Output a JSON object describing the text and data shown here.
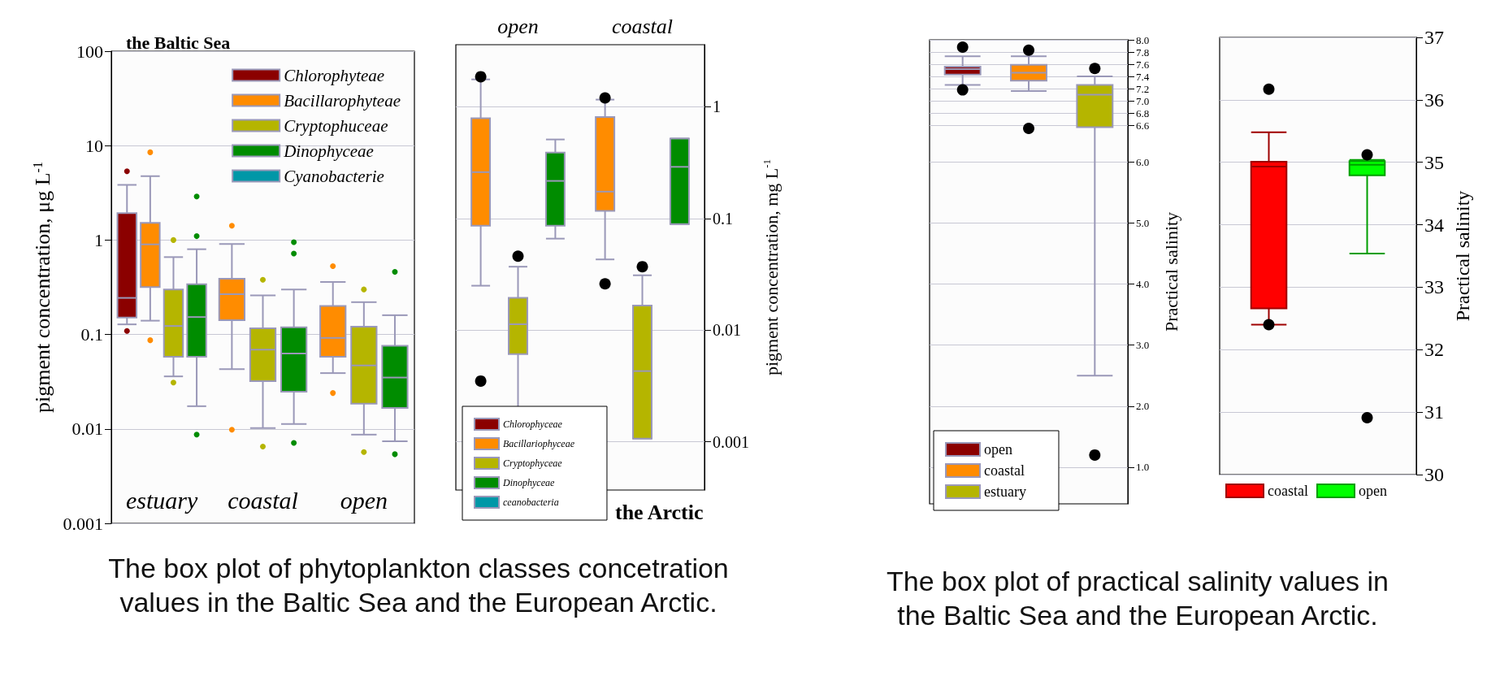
{
  "chart_data": [
    {
      "type": "box",
      "title": "the Baltic Sea",
      "ylabel": "pigment concentration, μg L$^{-1}$",
      "categories": [
        "estuary",
        "coastal",
        "open"
      ],
      "log": true,
      "ylim": [
        0.001,
        100
      ],
      "yticks": [
        0.001,
        0.01,
        0.1,
        1,
        10,
        100
      ],
      "grid": "y",
      "legend": "top right",
      "annotations": [
        "The box plot of phytoplankton classes concetration values in the Baltic Sea and the European Arctic."
      ],
      "series": [
        {
          "name": "Chlorophyteae",
          "color": "#8b0000",
          "boxes": [
            {
              "low": 0.128,
              "q1": 0.151,
              "median": 0.244,
              "q3": 1.93,
              "high": 3.84,
              "outliers": [
                5.35,
                0.109
              ]
            },
            null,
            null
          ]
        },
        {
          "name": "Bacillarophyteae",
          "color": "#ff8c00",
          "boxes": [
            {
              "low": 0.14,
              "q1": 0.318,
              "median": 0.9,
              "q3": 1.52,
              "high": 4.75,
              "outliers": [
                8.5,
                0.087
              ]
            },
            {
              "low": 0.043,
              "q1": 0.142,
              "median": 0.267,
              "q3": 0.39,
              "high": 0.91,
              "outliers": [
                1.42,
                0.0098
              ]
            },
            {
              "low": 0.039,
              "q1": 0.058,
              "median": 0.092,
              "q3": 0.2,
              "high": 0.36,
              "outliers": [
                0.53,
                0.024
              ]
            }
          ]
        },
        {
          "name": "Cryptophuceae",
          "color": "#b5b500",
          "boxes": [
            {
              "low": 0.036,
              "q1": 0.058,
              "median": 0.123,
              "q3": 0.3,
              "high": 0.66,
              "outliers": [
                1.0,
                0.031
              ]
            },
            {
              "low": 0.0102,
              "q1": 0.032,
              "median": 0.069,
              "q3": 0.116,
              "high": 0.26,
              "outliers": [
                0.38,
                0.0065
              ]
            },
            {
              "low": 0.0087,
              "q1": 0.0185,
              "median": 0.047,
              "q3": 0.121,
              "high": 0.22,
              "outliers": [
                0.3,
                0.0057
              ]
            }
          ]
        },
        {
          "name": "Dinophyceae",
          "color": "#008c00",
          "boxes": [
            {
              "low": 0.0174,
              "q1": 0.058,
              "median": 0.153,
              "q3": 0.34,
              "high": 0.8,
              "outliers": [
                2.9,
                1.1,
                0.0087
              ]
            },
            {
              "low": 0.0113,
              "q1": 0.0248,
              "median": 0.063,
              "q3": 0.119,
              "high": 0.3,
              "outliers": [
                0.95,
                0.72,
                0.0071
              ]
            },
            {
              "low": 0.0074,
              "q1": 0.0167,
              "median": 0.035,
              "q3": 0.076,
              "high": 0.16,
              "outliers": [
                0.46,
                0.0054
              ]
            }
          ]
        },
        {
          "name": "Cyanobacterie",
          "color": "#0097a7",
          "boxes": [
            null,
            null,
            null
          ]
        }
      ]
    },
    {
      "type": "box",
      "title": "the Arctic",
      "y2label": "pigment concentration, mg L$^{-1}$",
      "categories": [
        "open",
        "coastal"
      ],
      "log": "y2",
      "y2lim": [
        0.00037,
        3.6
      ],
      "y2ticks": [
        0.001,
        0.01,
        0.1,
        1
      ],
      "grid": "y",
      "legend": "bottom left",
      "series": [
        {
          "name": "Chlorophyceae",
          "color": "#8b0000",
          "axis": "y2",
          "boxes": [
            null,
            null
          ]
        },
        {
          "name": "Bacillariophyceae",
          "color": "#ff8c00",
          "axis": "y2",
          "boxes": [
            {
              "low": 0.025,
              "q1": 0.086,
              "median": 0.26,
              "q3": 0.79,
              "high": 1.76,
              "outliers": [
                1.86,
                0.0035
              ]
            },
            {
              "low": 0.043,
              "q1": 0.117,
              "median": 0.174,
              "q3": 0.81,
              "high": 1.16,
              "outliers": [
                1.2,
                0.026
              ]
            }
          ]
        },
        {
          "name": "Cryptophyceae",
          "color": "#b5b500",
          "axis": "y2",
          "boxes": [
            {
              "low": 0.00195,
              "q1": 0.0061,
              "median": 0.0113,
              "q3": 0.0195,
              "high": 0.037,
              "outliers": [
                0.046
              ]
            },
            {
              "low": 0.00107,
              "q1": 0.00107,
              "median": 0.0043,
              "q3": 0.0166,
              "high": 0.031,
              "outliers": [
                0.037
              ]
            }
          ]
        },
        {
          "name": "Dinophyceae",
          "color": "#008c00",
          "axis": "y2",
          "boxes": [
            {
              "low": 0.066,
              "q1": 0.086,
              "median": 0.217,
              "q3": 0.39,
              "high": 0.51
            },
            {
              "low": 0.089,
              "q1": 0.089,
              "median": 0.29,
              "q3": 0.52,
              "high": 0.52
            }
          ]
        },
        {
          "name": "ceanobacteria",
          "color": "#0097a7",
          "axis": "y2",
          "boxes": [
            null,
            null
          ]
        }
      ]
    },
    {
      "type": "box",
      "y2label": "Practical salinity",
      "categories": [
        null,
        null,
        null
      ],
      "y2lim": [
        0.4,
        8.0
      ],
      "y2ticks": [
        {
          "value": 1,
          "label": "1.0"
        },
        {
          "value": 2,
          "label": "2.0"
        },
        {
          "value": 3,
          "label": "3.0"
        },
        {
          "value": 4,
          "label": "4.0"
        },
        {
          "value": 5,
          "label": "5.0"
        },
        {
          "value": 6,
          "label": "6.0"
        },
        {
          "value": 6.6,
          "label": "6.6"
        },
        {
          "value": 6.8,
          "label": "6.8"
        },
        {
          "value": 7,
          "label": "7.0"
        },
        {
          "value": 7.2,
          "label": "7.2"
        },
        {
          "value": 7.4,
          "label": "7.4"
        },
        {
          "value": 7.6,
          "label": "7.6"
        },
        {
          "value": 7.8,
          "label": "7.8"
        },
        {
          "value": 8,
          "label": "8.0"
        }
      ],
      "grid": "y",
      "legend": "bottom left",
      "annotations": [
        "The box plot of practical salinity values in the Baltic Sea and the European Arctic."
      ],
      "series": [
        {
          "name": "open",
          "color": "#8b0000",
          "axis": "y2",
          "boxes": [
            {
              "low": 7.26,
              "q1": 7.43,
              "median": 7.52,
              "q3": 7.56,
              "high": 7.73,
              "outliers": [
                7.88,
                7.18
              ]
            },
            null,
            null
          ]
        },
        {
          "name": "coastal",
          "color": "#ff8c00",
          "axis": "y2",
          "boxes": [
            null,
            {
              "low": 7.16,
              "q1": 7.33,
              "median": 7.46,
              "q3": 7.59,
              "high": 7.73,
              "outliers": [
                7.83,
                6.55
              ]
            },
            null
          ]
        },
        {
          "name": "estuary",
          "color": "#b5b500",
          "axis": "y2",
          "boxes": [
            null,
            null,
            {
              "low": 2.5,
              "q1": 6.57,
              "median": 7.1,
              "q3": 7.26,
              "high": 7.4,
              "outliers": [
                7.53,
                1.2
              ]
            }
          ]
        }
      ]
    },
    {
      "type": "box",
      "y2label": "Practical salinity",
      "categories": [
        null,
        null
      ],
      "y2lim": [
        30,
        37
      ],
      "y2ticks": [
        30,
        31,
        32,
        33,
        34,
        35,
        36,
        37
      ],
      "grid": "y",
      "legend": "bottom",
      "series": [
        {
          "name": "coastal",
          "color": "#ff0000",
          "axis": "y2",
          "boxes": [
            {
              "low": 32.4,
              "q1": 32.66,
              "median": 34.93,
              "q3": 35.01,
              "high": 35.48,
              "outliers": [
                36.17,
                32.4
              ]
            },
            null
          ]
        },
        {
          "name": "open",
          "color": "#00ff00",
          "axis": "y2",
          "boxes": [
            null,
            {
              "low": 33.54,
              "q1": 34.79,
              "median": 34.96,
              "q3": 35.02,
              "high": 35.04,
              "outliers": [
                35.12,
                30.91
              ]
            }
          ]
        }
      ]
    }
  ]
}
